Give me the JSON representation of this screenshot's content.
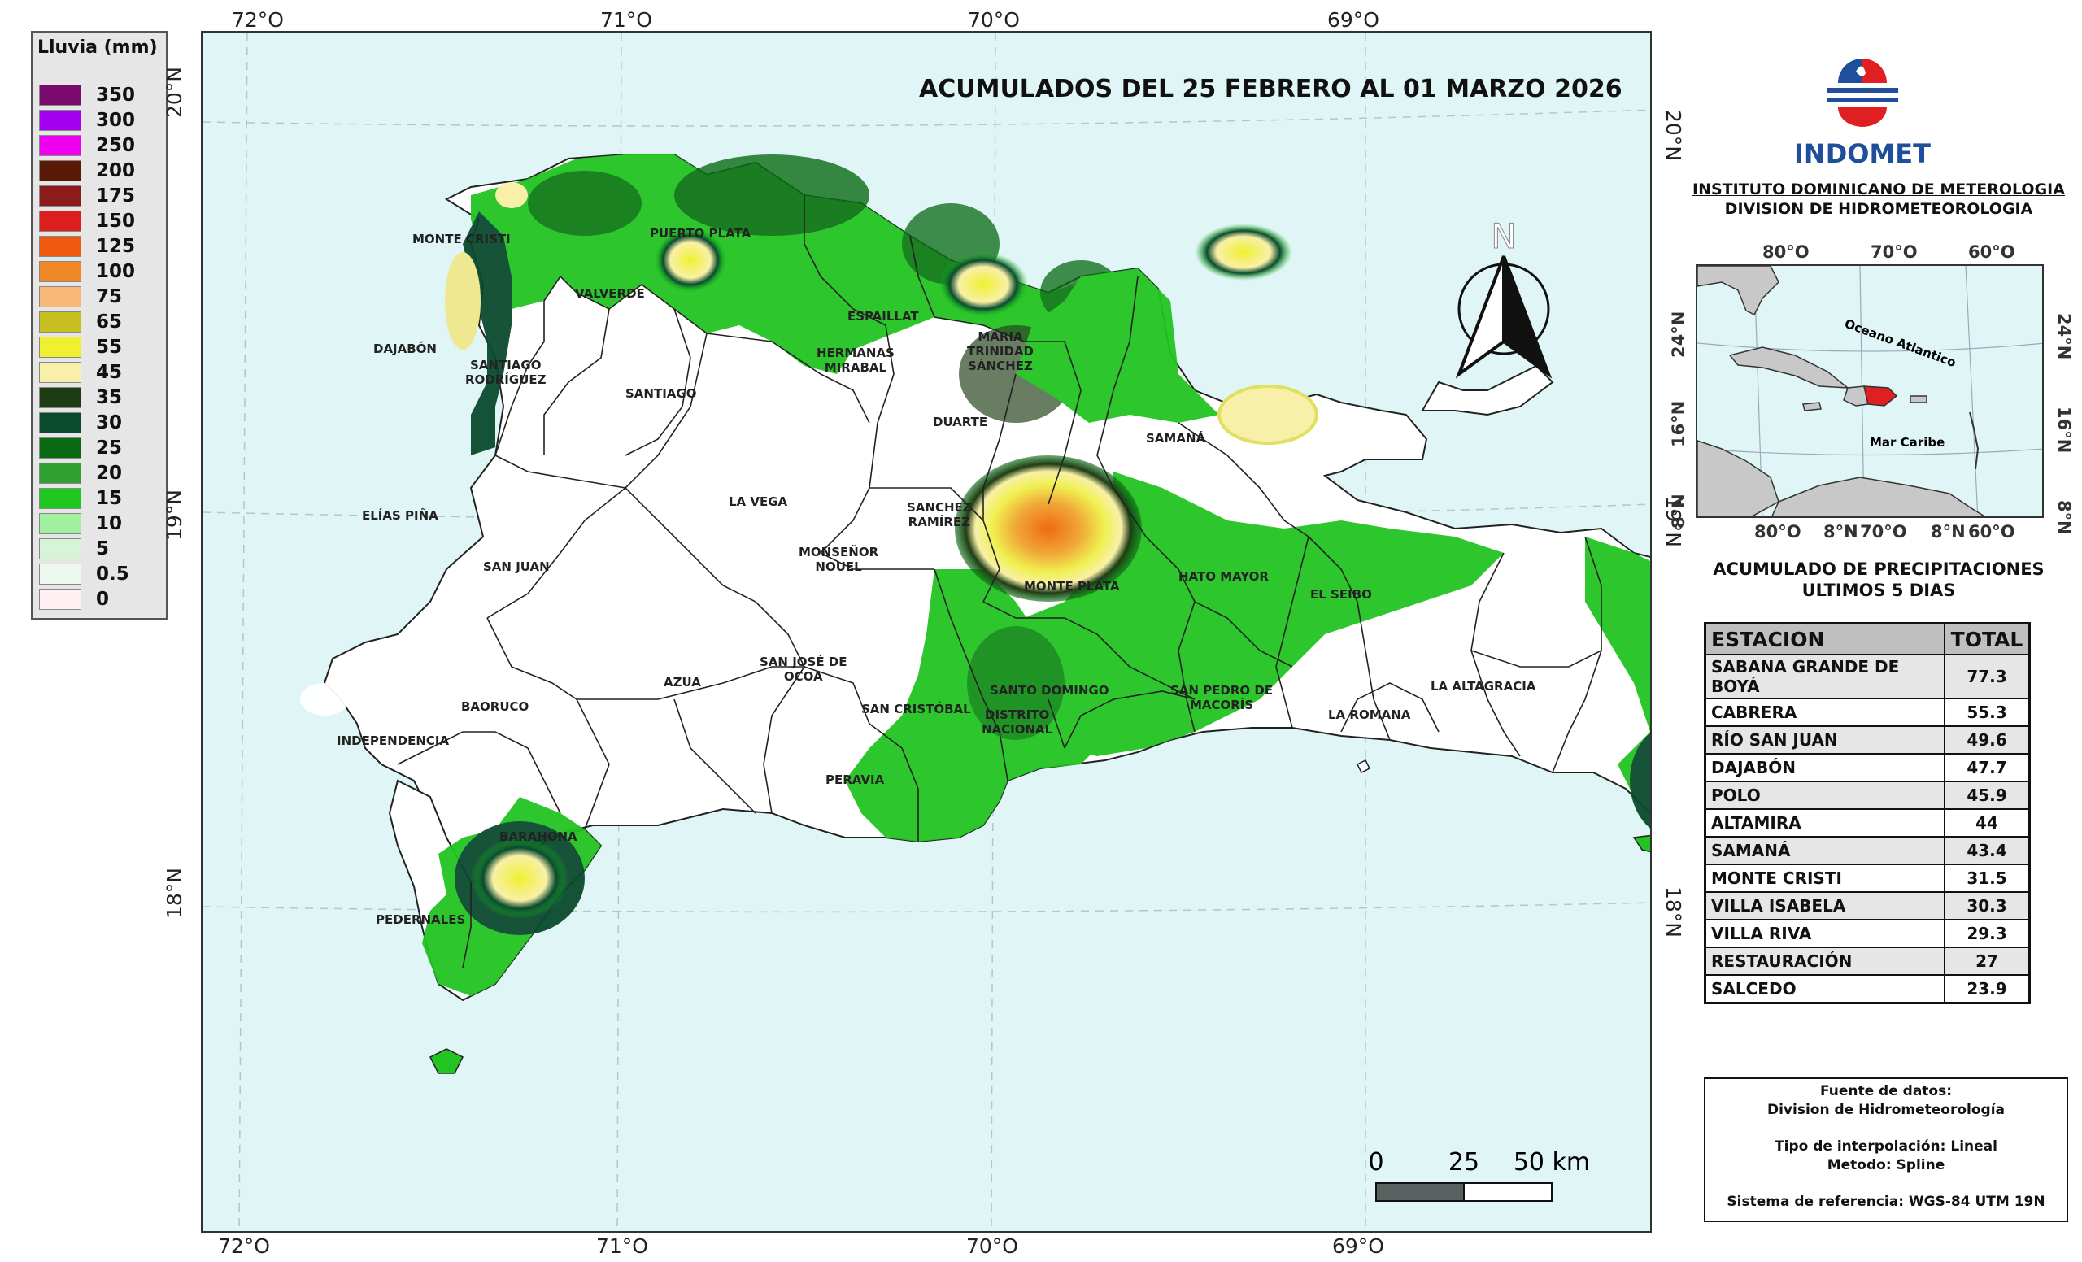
{
  "legend": {
    "title": "Lluvia (mm)",
    "items": [
      {
        "value": "350",
        "color": "#7a0a6e"
      },
      {
        "value": "300",
        "color": "#a400f0"
      },
      {
        "value": "250",
        "color": "#f000f0"
      },
      {
        "value": "200",
        "color": "#5a1a08"
      },
      {
        "value": "175",
        "color": "#8c1c1c"
      },
      {
        "value": "150",
        "color": "#dc1e1e"
      },
      {
        "value": "125",
        "color": "#f05a10"
      },
      {
        "value": "100",
        "color": "#f08828"
      },
      {
        "value": "75",
        "color": "#f8b878"
      },
      {
        "value": "65",
        "color": "#c8c020"
      },
      {
        "value": "55",
        "color": "#f0f030"
      },
      {
        "value": "45",
        "color": "#f8f0a8"
      },
      {
        "value": "35",
        "color": "#1e3c14"
      },
      {
        "value": "30",
        "color": "#0a4a2e"
      },
      {
        "value": "25",
        "color": "#0a6a14"
      },
      {
        "value": "20",
        "color": "#30a030"
      },
      {
        "value": "15",
        "color": "#1ec81e"
      },
      {
        "value": "10",
        "color": "#a0f0a0"
      },
      {
        "value": "5",
        "color": "#d8f4d8"
      },
      {
        "value": "0.5",
        "color": "#eef8ee"
      },
      {
        "value": "0",
        "color": "#fff0f4"
      }
    ]
  },
  "map": {
    "title": "ACUMULADOS DEL  25 FEBRERO AL 01 MARZO 2026",
    "top_longitudes": [
      "72°O",
      "71°O",
      "70°O",
      "69°O"
    ],
    "bottom_longitudes": [
      "72°O",
      "71°O",
      "70°O",
      "69°O"
    ],
    "left_latitudes": [
      "20°N",
      "19°N",
      "18°N"
    ],
    "right_latitudes": [
      "20°N",
      "19°N",
      "18°N"
    ],
    "north_label": "N",
    "provinces": [
      {
        "name": "MONTE CRISTI"
      },
      {
        "name": "PUERTO PLATA"
      },
      {
        "name": "VALVERDE"
      },
      {
        "name": "ESPAILLAT"
      },
      {
        "name": "HERMANAS\nMIRABAL"
      },
      {
        "name": "MARIA\nTRINIDAD\nSÁNCHEZ"
      },
      {
        "name": "DAJABÓN"
      },
      {
        "name": "SANTIAGO\nRODRÍGUEZ"
      },
      {
        "name": "SANTIAGO"
      },
      {
        "name": "DUARTE"
      },
      {
        "name": "SAMANÁ"
      },
      {
        "name": "ELÍAS PIÑA"
      },
      {
        "name": "LA VEGA"
      },
      {
        "name": "SANCHEZ\nRAMÍREZ"
      },
      {
        "name": "MONSEÑOR\nNOUEL"
      },
      {
        "name": "SAN JUAN"
      },
      {
        "name": "MONTE PLATA"
      },
      {
        "name": "HATO MAYOR"
      },
      {
        "name": "EL SEIBO"
      },
      {
        "name": "SAN JOSÉ DE\nOCOA"
      },
      {
        "name": "AZUA"
      },
      {
        "name": "BAORUCO"
      },
      {
        "name": "SANTO DOMINGO"
      },
      {
        "name": "SAN PEDRO DE\nMACORÍS"
      },
      {
        "name": "LA ALTAGRACIA"
      },
      {
        "name": "SAN CRISTÓBAL"
      },
      {
        "name": "DISTRITO\nNACIONAL"
      },
      {
        "name": "LA ROMANA"
      },
      {
        "name": "INDEPENDENCIA"
      },
      {
        "name": "PERAVIA"
      },
      {
        "name": "BARAHONA"
      },
      {
        "name": "PEDERNALES"
      }
    ],
    "scale": {
      "labels": [
        "0",
        "25",
        "50 km"
      ]
    }
  },
  "agency": {
    "logo_text": "INDOMET",
    "institute": "INSTITUTO DOMINICANO DE METEROLOGIA",
    "division": "DIVISION DE HIDROMETEOROLOGIA"
  },
  "inset": {
    "top_labels": [
      "80°O",
      "70°O",
      "60°O"
    ],
    "bottom_labels": [
      "80°O",
      "8°N",
      "70°O",
      "8°N",
      "60°O"
    ],
    "left_labels": [
      "24°N",
      "16°N",
      "8°N"
    ],
    "right_labels": [
      "24°N",
      "16°N",
      "8°N"
    ],
    "ocean_label": "Oceano Atlantico",
    "sea_label": "Mar Caribe"
  },
  "stations": {
    "title_line1": "ACUMULADO DE PRECIPITACIONES",
    "title_line2": "ULTIMOS 5 DIAS",
    "headers": [
      "ESTACION",
      "TOTAL"
    ],
    "rows": [
      {
        "name": "SABANA GRANDE DE BOYÁ",
        "total": "77.3"
      },
      {
        "name": "CABRERA",
        "total": "55.3"
      },
      {
        "name": "RÍO SAN JUAN",
        "total": "49.6"
      },
      {
        "name": "DAJABÓN",
        "total": "47.7"
      },
      {
        "name": "POLO",
        "total": "45.9"
      },
      {
        "name": "ALTAMIRA",
        "total": "44"
      },
      {
        "name": "SAMANÁ",
        "total": "43.4"
      },
      {
        "name": "MONTE CRISTI",
        "total": "31.5"
      },
      {
        "name": "VILLA ISABELA",
        "total": "30.3"
      },
      {
        "name": "VILLA RIVA",
        "total": "29.3"
      },
      {
        "name": "RESTAURACIÓN",
        "total": "27"
      },
      {
        "name": "SALCEDO",
        "total": "23.9"
      }
    ]
  },
  "source": {
    "line1": "Fuente de datos:",
    "line2": "Division de Hidrometeorología",
    "line3": "Tipo de interpolación: Lineal",
    "line4": "Metodo: Spline",
    "line5": "Sistema de referencia: WGS-84 UTM 19N"
  }
}
